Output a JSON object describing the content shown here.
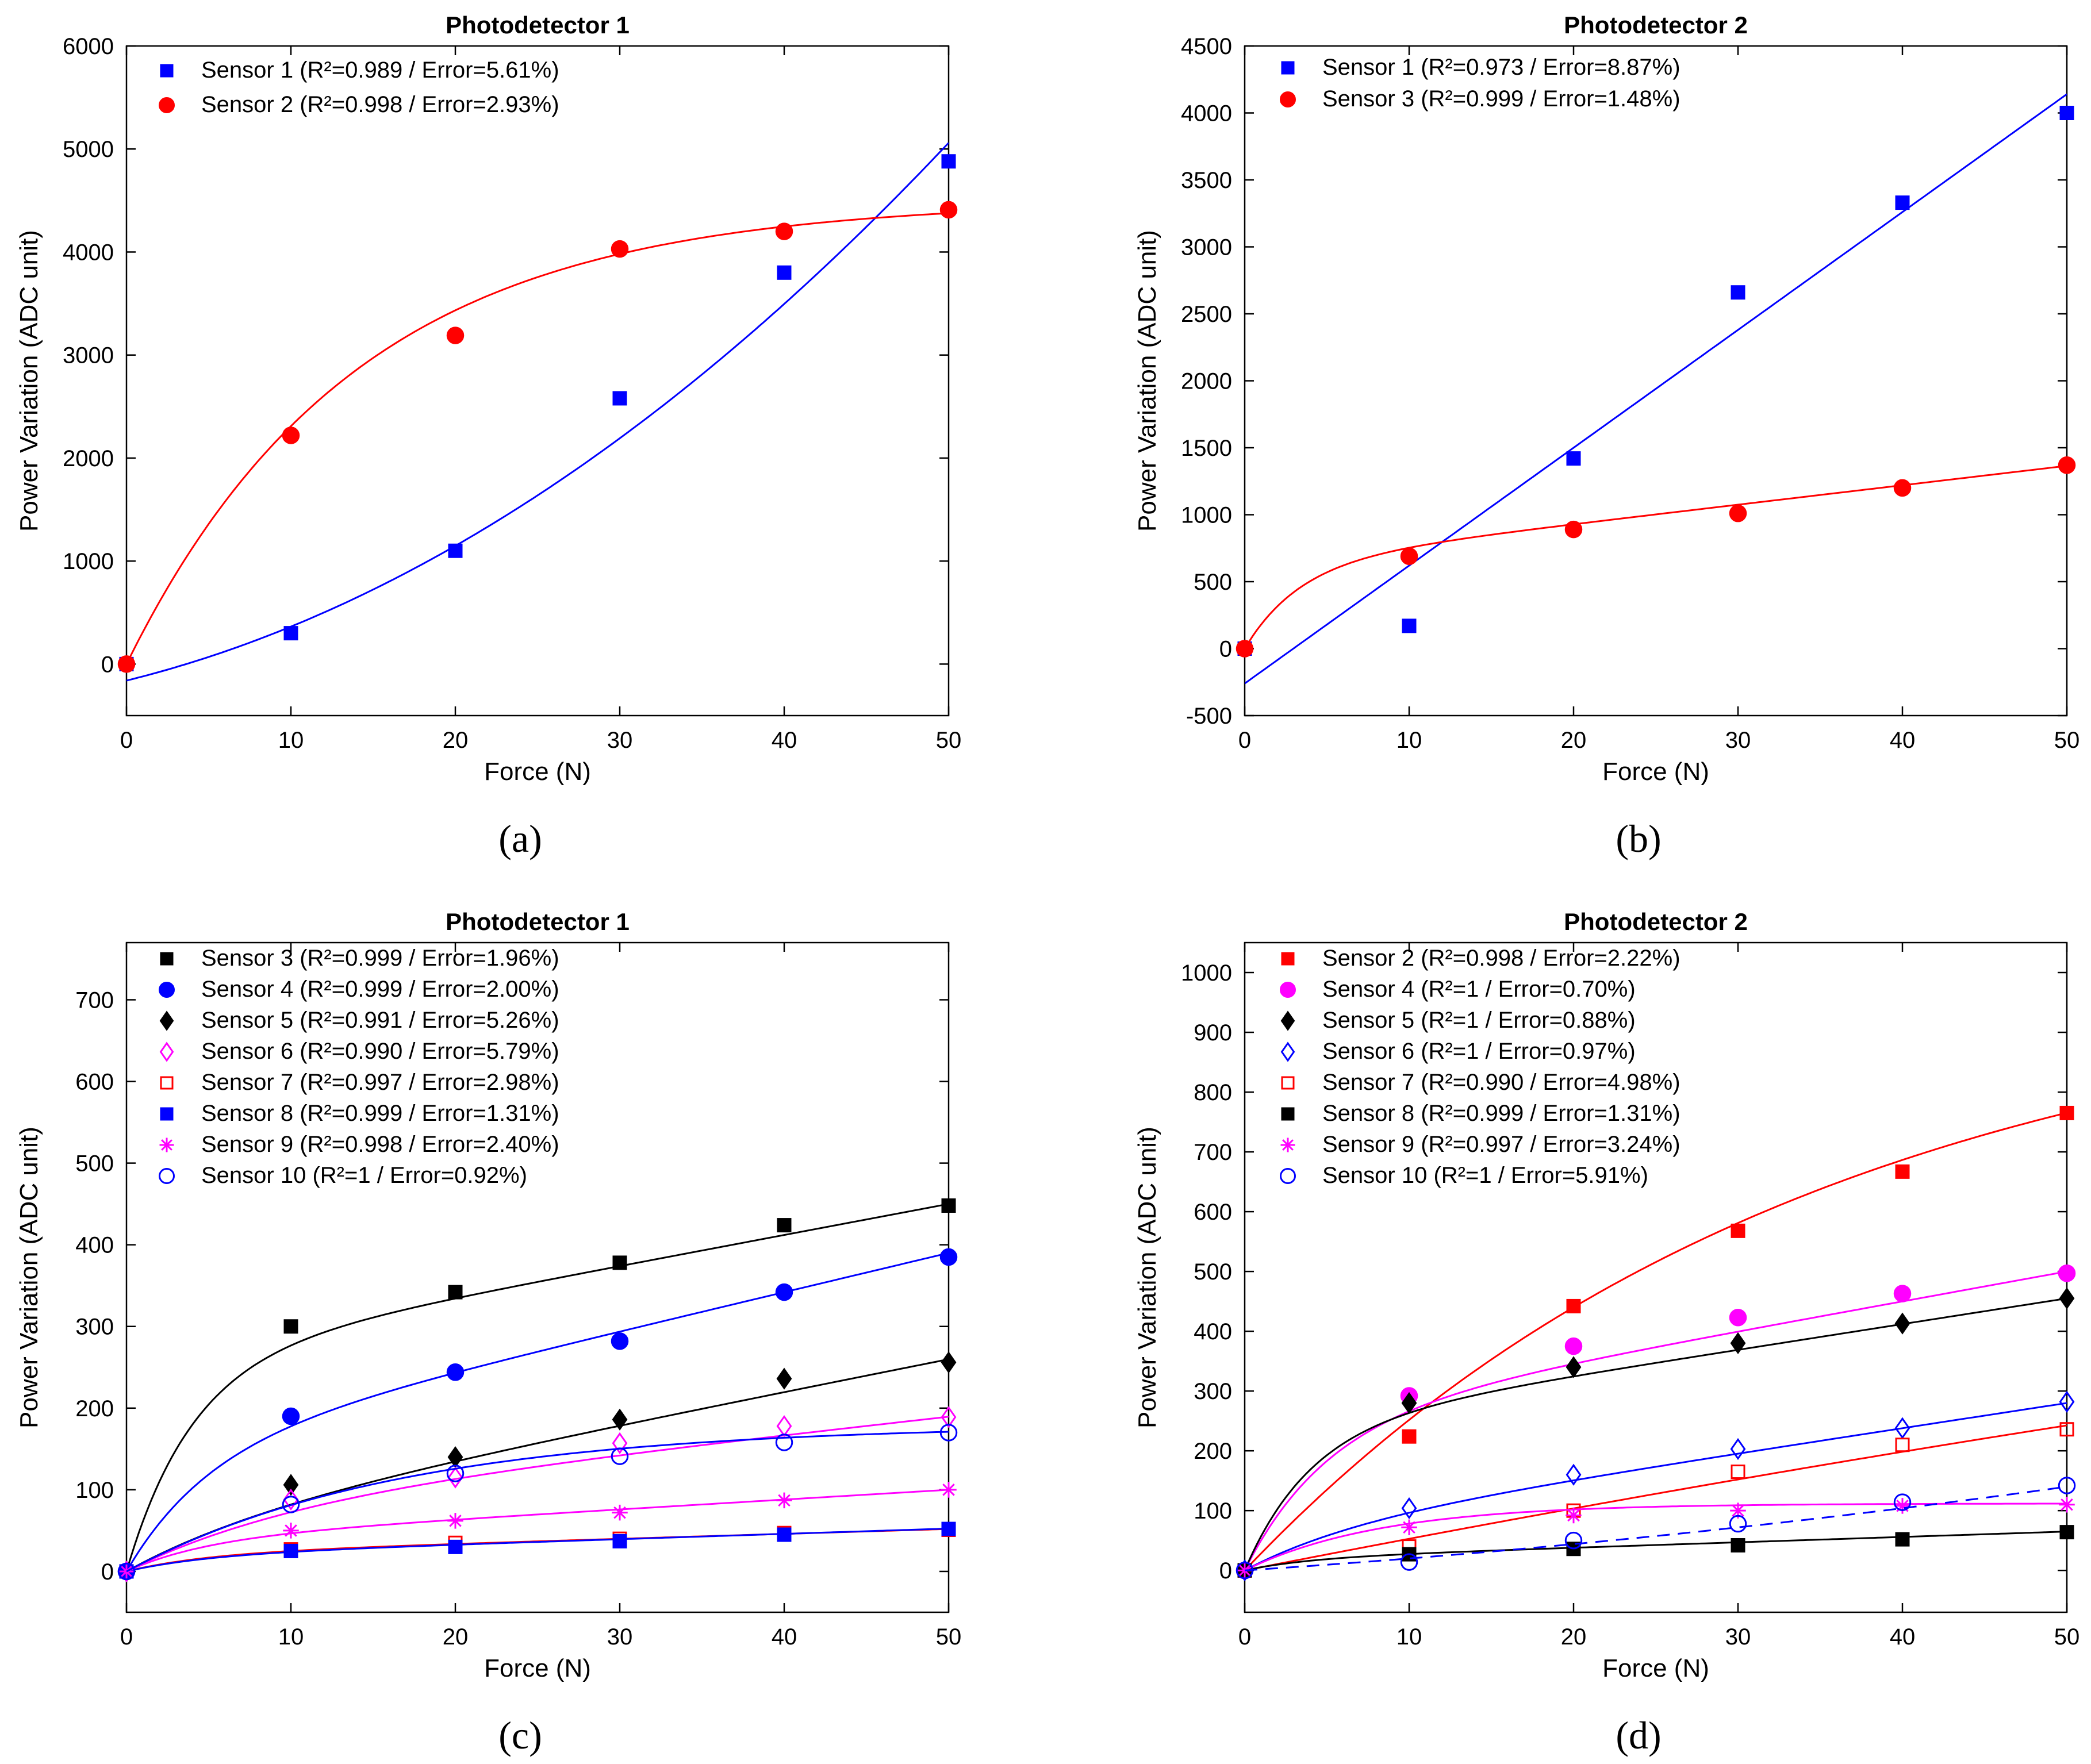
{
  "figure": {
    "captions": [
      "(a)",
      "(b)",
      "(c)",
      "(d)"
    ]
  },
  "chart_data": [
    {
      "id": "a",
      "type": "scatter",
      "title": "Photodetector 1",
      "xlabel": "Force (N)",
      "ylabel": "Power Variation (ADC unit)",
      "xlim": [
        0,
        50
      ],
      "ylim": [
        -500,
        6000
      ],
      "xticks": [
        0,
        10,
        20,
        30,
        40,
        50
      ],
      "yticks": [
        0,
        1000,
        2000,
        3000,
        4000,
        5000,
        6000
      ],
      "legend_position": "top-left",
      "series": [
        {
          "name": "Sensor 1 (R²=0.989 / Error=5.61%)",
          "color": "#0000ff",
          "marker": "square-filled",
          "x": [
            0,
            10,
            20,
            30,
            40,
            50
          ],
          "y": [
            0,
            300,
            1100,
            2580,
            3800,
            4880
          ],
          "fit": {
            "kind": "poly",
            "coef": [
              -160,
              39.4,
              1.3
            ]
          }
        },
        {
          "name": "Sensor 2 (R²=0.998 / Error=2.93%)",
          "color": "#ff0000",
          "marker": "circle-filled",
          "x": [
            0,
            10,
            20,
            30,
            40,
            50
          ],
          "y": [
            0,
            2220,
            3190,
            4030,
            4200,
            4410
          ],
          "fit": {
            "kind": "exp",
            "a": 4500,
            "k": 0.072
          }
        }
      ]
    },
    {
      "id": "b",
      "type": "scatter",
      "title": "Photodetector 2",
      "xlabel": "Force (N)",
      "ylabel": "Power Variation (ADC unit)",
      "xlim": [
        0,
        50
      ],
      "ylim": [
        -500,
        4500
      ],
      "xticks": [
        0,
        10,
        20,
        30,
        40,
        50
      ],
      "yticks": [
        -500,
        0,
        500,
        1000,
        1500,
        2000,
        2500,
        3000,
        3500,
        4000,
        4500
      ],
      "legend_position": "top-left",
      "series": [
        {
          "name": "Sensor 1 (R²=0.973 / Error=8.87%)",
          "color": "#0000ff",
          "marker": "square-filled",
          "x": [
            0,
            10,
            20,
            30,
            40,
            50
          ],
          "y": [
            0,
            170,
            1420,
            2660,
            3330,
            4000
          ],
          "fit": {
            "kind": "poly",
            "coef": [
              -260,
              88
            ]
          }
        },
        {
          "name": "Sensor 3 (R²=0.999 / Error=1.48%)",
          "color": "#ff0000",
          "marker": "circle-filled",
          "x": [
            0,
            10,
            20,
            30,
            40,
            50
          ],
          "y": [
            0,
            690,
            890,
            1010,
            1200,
            1370
          ],
          "fit": {
            "kind": "explin",
            "a": 640,
            "k": 0.3,
            "b": 14.5
          }
        }
      ]
    },
    {
      "id": "c",
      "type": "scatter",
      "title": "Photodetector 1",
      "xlabel": "Force (N)",
      "ylabel": "Power Variation (ADC unit)",
      "xlim": [
        0,
        50
      ],
      "ylim": [
        -50,
        770
      ],
      "xticks": [
        0,
        10,
        20,
        30,
        40,
        50
      ],
      "yticks": [
        0,
        100,
        200,
        300,
        400,
        500,
        600,
        700
      ],
      "legend_position": "top-left",
      "series": [
        {
          "name": "Sensor 3 (R²=0.999 / Error=1.96%)",
          "color": "#000000",
          "marker": "square-filled",
          "x": [
            0,
            10,
            20,
            30,
            40,
            50
          ],
          "y": [
            0,
            300,
            342,
            378,
            424,
            448
          ],
          "fit": {
            "kind": "explin",
            "a": 260,
            "k": 0.25,
            "b": 3.8
          }
        },
        {
          "name": "Sensor 4 (R²=0.999 / Error=2.00%)",
          "color": "#0000ff",
          "marker": "circle-filled",
          "x": [
            0,
            10,
            20,
            30,
            40,
            50
          ],
          "y": [
            0,
            190,
            244,
            282,
            342,
            385
          ],
          "fit": {
            "kind": "explin",
            "a": 150,
            "k": 0.2,
            "b": 4.8
          }
        },
        {
          "name": "Sensor 5 (R²=0.991 / Error=5.26%)",
          "color": "#000000",
          "marker": "diamond-filled",
          "x": [
            0,
            10,
            20,
            30,
            40,
            50
          ],
          "y": [
            0,
            106,
            140,
            186,
            236,
            256
          ],
          "fit": {
            "kind": "explin",
            "a": 60,
            "k": 0.12,
            "b": 4.0
          }
        },
        {
          "name": "Sensor 6 (R²=0.990 / Error=5.79%)",
          "color": "#ff00ff",
          "marker": "diamond-open",
          "x": [
            0,
            10,
            20,
            30,
            40,
            50
          ],
          "y": [
            0,
            88,
            115,
            157,
            178,
            189
          ],
          "fit": {
            "kind": "explin",
            "a": 80,
            "k": 0.1,
            "b": 2.2
          }
        },
        {
          "name": "Sensor 7 (R²=0.997 / Error=2.98%)",
          "color": "#ff0000",
          "marker": "square-open",
          "x": [
            0,
            10,
            20,
            30,
            40,
            50
          ],
          "y": [
            0,
            27,
            35,
            40,
            47,
            51
          ],
          "fit": {
            "kind": "explin",
            "a": 22,
            "k": 0.2,
            "b": 0.6
          }
        },
        {
          "name": "Sensor 8 (R²=0.999 / Error=1.31%)",
          "color": "#0000ff",
          "marker": "square-filled",
          "x": [
            0,
            10,
            20,
            30,
            40,
            50
          ],
          "y": [
            0,
            25,
            30,
            37,
            45,
            52
          ],
          "fit": {
            "kind": "explin",
            "a": 20,
            "k": 0.2,
            "b": 0.65
          }
        },
        {
          "name": "Sensor 9 (R²=0.998 / Error=2.40%)",
          "color": "#ff00ff",
          "marker": "star",
          "x": [
            0,
            10,
            20,
            30,
            40,
            50
          ],
          "y": [
            0,
            50,
            62,
            72,
            87,
            100
          ],
          "fit": {
            "kind": "explin",
            "a": 40,
            "k": 0.2,
            "b": 1.2
          }
        },
        {
          "name": "Sensor 10 (R²=1 / Error=0.92%)",
          "color": "#0000ff",
          "marker": "circle-open",
          "x": [
            0,
            10,
            20,
            30,
            40,
            50
          ],
          "y": [
            0,
            82,
            120,
            141,
            158,
            170
          ],
          "fit": {
            "kind": "exp",
            "a": 180,
            "k": 0.06
          }
        }
      ]
    },
    {
      "id": "d",
      "type": "scatter",
      "title": "Photodetector 2",
      "xlabel": "Force (N)",
      "ylabel": "Power Variation (ADC unit)",
      "xlim": [
        0,
        50
      ],
      "ylim": [
        -70,
        1050
      ],
      "xticks": [
        0,
        10,
        20,
        30,
        40,
        50
      ],
      "yticks": [
        0,
        100,
        200,
        300,
        400,
        500,
        600,
        700,
        800,
        900,
        1000
      ],
      "legend_position": "top-left",
      "series": [
        {
          "name": "Sensor 2 (R²=0.998 / Error=2.22%)",
          "color": "#ff0000",
          "marker": "square-filled",
          "x": [
            0,
            10,
            20,
            30,
            40,
            50
          ],
          "y": [
            0,
            224,
            442,
            568,
            667,
            765
          ],
          "fit": {
            "kind": "exp",
            "a": 1000,
            "k": 0.029
          }
        },
        {
          "name": "Sensor 4 (R²=1 / Error=0.70%)",
          "color": "#ff00ff",
          "marker": "circle-filled",
          "x": [
            0,
            10,
            20,
            30,
            40,
            50
          ],
          "y": [
            0,
            292,
            375,
            423,
            463,
            497
          ],
          "fit": {
            "kind": "explin",
            "a": 250,
            "k": 0.2,
            "b": 5.0
          }
        },
        {
          "name": "Sensor 5 (R²=1 / Error=0.88%)",
          "color": "#000000",
          "marker": "diamond-filled",
          "x": [
            0,
            10,
            20,
            30,
            40,
            50
          ],
          "y": [
            0,
            280,
            340,
            380,
            413,
            455
          ],
          "fit": {
            "kind": "explin",
            "a": 240,
            "k": 0.25,
            "b": 4.3
          }
        },
        {
          "name": "Sensor 6 (R²=1 / Error=0.97%)",
          "color": "#0000ff",
          "marker": "diamond-open",
          "x": [
            0,
            10,
            20,
            30,
            40,
            50
          ],
          "y": [
            0,
            104,
            160,
            203,
            238,
            282
          ],
          "fit": {
            "kind": "explin",
            "a": 70,
            "k": 0.15,
            "b": 4.2
          }
        },
        {
          "name": "Sensor 7 (R²=0.990 / Error=4.98%)",
          "color": "#ff0000",
          "marker": "square-open",
          "x": [
            0,
            10,
            20,
            30,
            40,
            50
          ],
          "y": [
            0,
            40,
            100,
            165,
            210,
            236
          ],
          "fit": {
            "kind": "poly",
            "coef": [
              0,
              5.4,
              -0.011
            ]
          }
        },
        {
          "name": "Sensor 8 (R²=0.999 / Error=1.31%)",
          "color": "#000000",
          "marker": "square-filled",
          "x": [
            0,
            10,
            20,
            30,
            40,
            50
          ],
          "y": [
            0,
            27,
            36,
            42,
            52,
            64
          ],
          "fit": {
            "kind": "explin",
            "a": 20,
            "k": 0.25,
            "b": 0.9
          }
        },
        {
          "name": "Sensor 9 (R²=0.997 / Error=3.24%)",
          "color": "#ff00ff",
          "marker": "star",
          "x": [
            0,
            10,
            20,
            30,
            40,
            50
          ],
          "y": [
            0,
            72,
            92,
            100,
            108,
            110
          ],
          "fit": {
            "kind": "exp",
            "a": 112,
            "k": 0.12
          }
        },
        {
          "name": "Sensor 10 (R²=1 / Error=5.91%)",
          "color": "#0000ff",
          "marker": "circle-open",
          "x": [
            0,
            10,
            20,
            30,
            40,
            50
          ],
          "y": [
            0,
            14,
            50,
            78,
            114,
            142
          ],
          "fit": {
            "kind": "poly",
            "coef": [
              0,
              1.8,
              0.02
            ],
            "dashed": true
          }
        }
      ]
    }
  ]
}
